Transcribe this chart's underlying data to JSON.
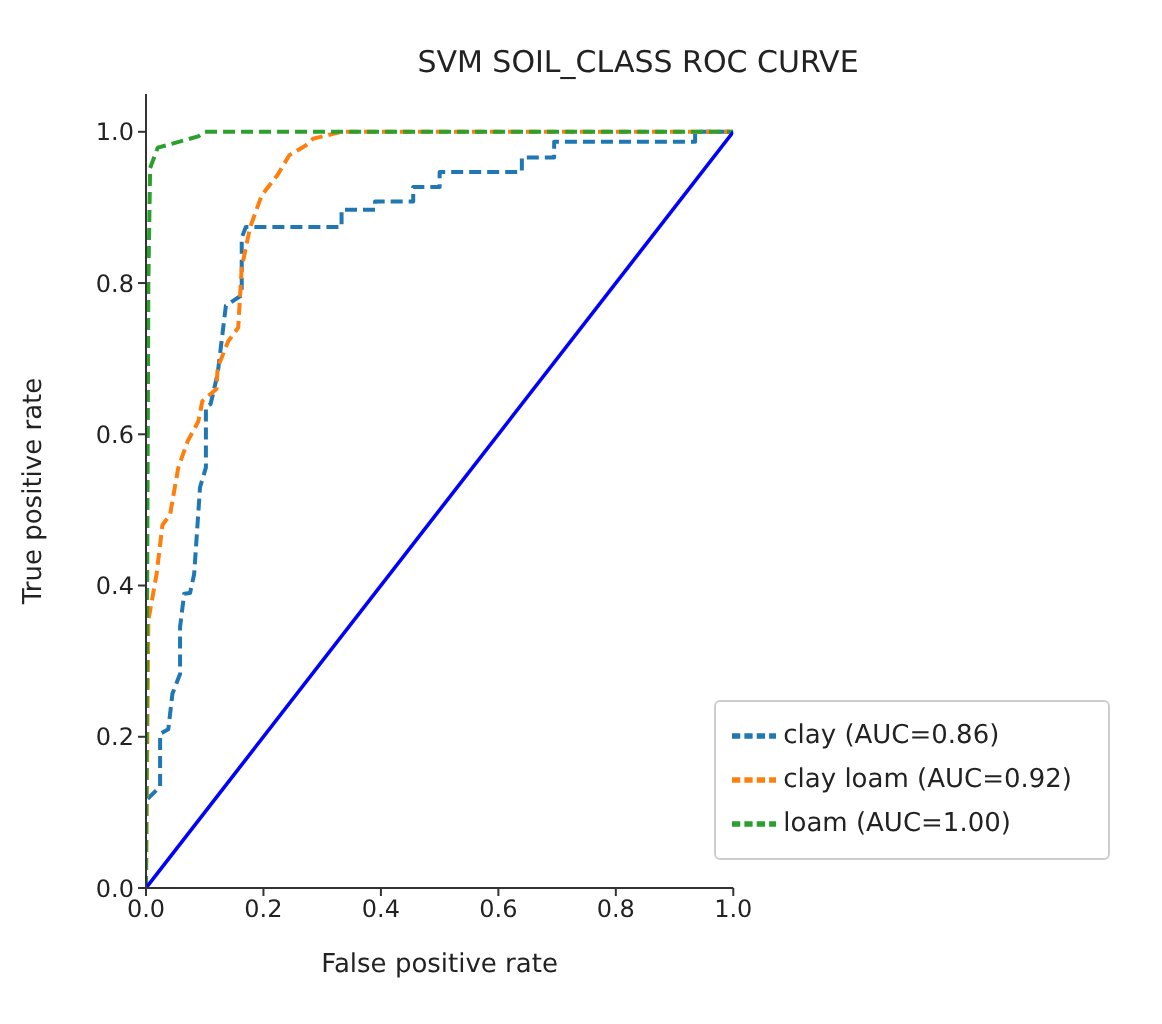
{
  "chart_data": {
    "type": "line",
    "title": "SVM SOIL_CLASS ROC CURVE",
    "xlabel": "False positive rate",
    "ylabel": "True positive rate",
    "xlim": [
      0,
      1
    ],
    "ylim": [
      0,
      1.05
    ],
    "xticks": [
      {
        "value": 0,
        "label": "0.0"
      },
      {
        "value": 0.2,
        "label": "0.2"
      },
      {
        "value": 0.4,
        "label": "0.4"
      },
      {
        "value": 0.6,
        "label": "0.6"
      },
      {
        "value": 0.8,
        "label": "0.8"
      },
      {
        "value": 1,
        "label": "1.0"
      }
    ],
    "yticks": [
      {
        "value": 0,
        "label": "0.0"
      },
      {
        "value": 0.2,
        "label": "0.2"
      },
      {
        "value": 0.4,
        "label": "0.4"
      },
      {
        "value": 0.6,
        "label": "0.6"
      },
      {
        "value": 0.8,
        "label": "0.8"
      },
      {
        "value": 1,
        "label": "1.0"
      }
    ],
    "grid": false,
    "legend": "bottom right",
    "marker": "none",
    "series": [
      {
        "name": "clay (AUC=0.86)",
        "color": "#1f77b4",
        "line_style": "dashed",
        "x": [
          0,
          0,
          0.024,
          0.024,
          0.038,
          0.045,
          0.058,
          0.058,
          0.065,
          0.075,
          0.082,
          0.092,
          0.102,
          0.102,
          0.11,
          0.122,
          0.136,
          0.163,
          0.163,
          0.17,
          0.333,
          0.333,
          0.39,
          0.39,
          0.455,
          0.455,
          0.5,
          0.5,
          0.64,
          0.64,
          0.695,
          0.695,
          0.935,
          0.935,
          1
        ],
        "values": [
          0,
          0.116,
          0.134,
          0.204,
          0.21,
          0.257,
          0.283,
          0.345,
          0.389,
          0.39,
          0.415,
          0.53,
          0.556,
          0.636,
          0.64,
          0.68,
          0.77,
          0.784,
          0.86,
          0.874,
          0.874,
          0.897,
          0.897,
          0.908,
          0.908,
          0.927,
          0.927,
          0.947,
          0.947,
          0.966,
          0.966,
          0.987,
          0.987,
          1,
          1
        ]
      },
      {
        "name": "clay loam (AUC=0.92)",
        "color": "#ff7f0e",
        "line_style": "dashed",
        "x": [
          0,
          0.004,
          0.018,
          0.028,
          0.041,
          0.055,
          0.071,
          0.089,
          0.096,
          0.12,
          0.122,
          0.14,
          0.157,
          0.163,
          0.177,
          0.197,
          0.224,
          0.244,
          0.272,
          0.285,
          0.333,
          1
        ],
        "values": [
          0,
          0.354,
          0.415,
          0.48,
          0.494,
          0.556,
          0.591,
          0.617,
          0.644,
          0.66,
          0.688,
          0.723,
          0.741,
          0.82,
          0.873,
          0.916,
          0.943,
          0.969,
          0.982,
          0.991,
          1,
          1
        ]
      },
      {
        "name": "loam (AUC=1.00)",
        "color": "#2ca02c",
        "line_style": "dashed",
        "x": [
          0,
          0.004,
          0.007,
          0.02,
          0.089,
          0.1,
          1
        ],
        "values": [
          0,
          0.8,
          0.952,
          0.979,
          0.994,
          1,
          1
        ]
      },
      {
        "color": "#0000ff",
        "line_style": "solid",
        "x": [
          0,
          1
        ],
        "values": [
          0,
          1
        ]
      }
    ]
  }
}
